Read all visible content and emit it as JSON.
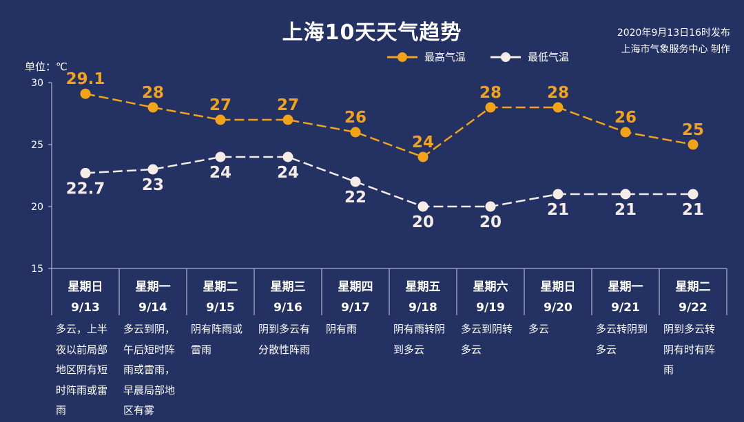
{
  "header": {
    "title": "上海10天天气趋势",
    "publish_line1": "2020年9月13日16时发布",
    "publish_line2": "上海市气象服务中心 制作",
    "unit_label": "单位：℃"
  },
  "colors": {
    "high": "#f3a318",
    "low": "#f6ece6",
    "background": "#243263"
  },
  "chart_data": {
    "type": "line",
    "ylim": [
      15,
      30
    ],
    "yticks": [
      15,
      20,
      25,
      30
    ],
    "series": [
      {
        "name": "最高气温",
        "values": [
          29.1,
          28,
          27,
          27,
          26,
          24,
          28,
          28,
          26,
          25
        ],
        "labels": [
          "29.1",
          "28",
          "27",
          "27",
          "26",
          "24",
          "28",
          "28",
          "26",
          "25"
        ]
      },
      {
        "name": "最低气温",
        "values": [
          22.7,
          23,
          24,
          24,
          22,
          20,
          20,
          21,
          21,
          21
        ],
        "labels": [
          "22.7",
          "23",
          "24",
          "24",
          "22",
          "20",
          "20",
          "21",
          "21",
          "21"
        ]
      }
    ],
    "weekdays": [
      "星期日",
      "星期一",
      "星期二",
      "星期三",
      "星期四",
      "星期五",
      "星期六",
      "星期日",
      "星期一",
      "星期二"
    ],
    "dates": [
      "9/13",
      "9/14",
      "9/15",
      "9/16",
      "9/17",
      "9/18",
      "9/19",
      "9/20",
      "9/21",
      "9/22"
    ],
    "descriptions": [
      "多云，上半夜以前局部地区阴有短时阵雨或雷雨",
      "多云到阴，午后短时阵雨或雷雨，早晨局部地区有雾",
      "阴有阵雨或雷雨",
      "阴到多云有分散性阵雨",
      "阴有雨",
      "阴有雨转阴到多云",
      "多云到阴转多云",
      "多云",
      "多云转阴到多云",
      "阴到多云转阴有时有阵雨"
    ]
  }
}
